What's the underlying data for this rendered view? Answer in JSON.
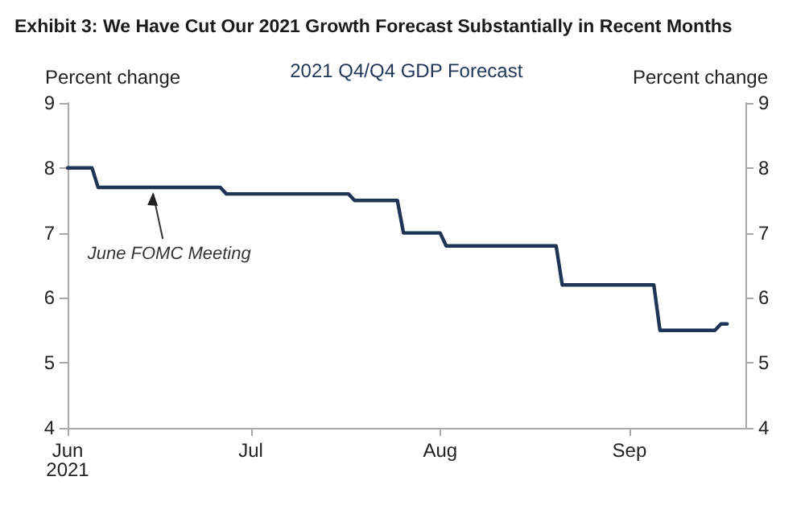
{
  "chart_data": {
    "type": "line",
    "title": "Exhibit 3: We Have Cut Our 2021 Growth Forecast Substantially in Recent Months",
    "ylabel": "Percent change",
    "y2label": "Percent change",
    "series": [
      {
        "name": "2021 Q4/Q4 GDP Forecast",
        "color": "#1f3556",
        "x": [
          "2021-06-01",
          "2021-06-05",
          "2021-06-06",
          "2021-06-26",
          "2021-06-27",
          "2021-07-17",
          "2021-07-18",
          "2021-07-25",
          "2021-07-26",
          "2021-08-01",
          "2021-08-02",
          "2021-08-20",
          "2021-08-21",
          "2021-09-05",
          "2021-09-06",
          "2021-09-15",
          "2021-09-16",
          "2021-09-17"
        ],
        "values": [
          8.0,
          8.0,
          7.7,
          7.7,
          7.6,
          7.6,
          7.5,
          7.5,
          7.0,
          7.0,
          6.8,
          6.8,
          6.2,
          6.2,
          5.5,
          5.5,
          5.6,
          5.6
        ]
      }
    ],
    "xlim": [
      "2021-06-01",
      "2021-09-20"
    ],
    "xticks": [
      {
        "value": "2021-06-01",
        "label": "Jun\n2021"
      },
      {
        "value": "2021-07-01",
        "label": "Jul"
      },
      {
        "value": "2021-08-01",
        "label": "Aug"
      },
      {
        "value": "2021-09-01",
        "label": "Sep"
      }
    ],
    "ylim": [
      4,
      9
    ],
    "yticks": [
      4,
      5,
      6,
      7,
      8,
      9
    ],
    "y2lim": [
      4,
      9
    ],
    "y2ticks": [
      4,
      5,
      6,
      7,
      8,
      9
    ],
    "annotations": [
      {
        "text": "June FOMC Meeting",
        "x": "2021-06-15",
        "y": 7.7
      }
    ],
    "legend": "top",
    "grid": false,
    "marker": "none",
    "line_style": "solid"
  }
}
